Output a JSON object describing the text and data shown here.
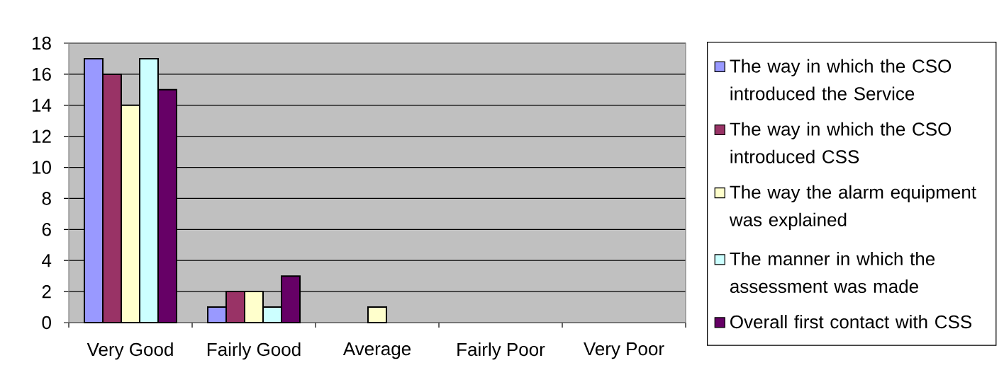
{
  "chart_data": {
    "type": "bar",
    "categories": [
      "Very Good",
      "Fairly Good",
      "Average",
      "Fairly Poor",
      "Very Poor"
    ],
    "series": [
      {
        "name": "The way in which the CSO introduced the Service",
        "color": "#9999ff",
        "values": [
          17,
          1,
          0,
          0,
          0
        ]
      },
      {
        "name": "The way in which the CSO introduced CSS",
        "color": "#993366",
        "values": [
          16,
          2,
          0,
          0,
          0
        ]
      },
      {
        "name": "The way the alarm equipment was explained",
        "color": "#ffffcc",
        "values": [
          14,
          2,
          1,
          0,
          0
        ]
      },
      {
        "name": "The manner in which the assessment was made",
        "color": "#ccffff",
        "values": [
          17,
          1,
          0,
          0,
          0
        ]
      },
      {
        "name": "Overall first contact with CSS",
        "color": "#660066",
        "values": [
          15,
          3,
          0,
          0,
          0
        ]
      }
    ],
    "ylim": [
      0,
      18
    ],
    "yticks": [
      0,
      2,
      4,
      6,
      8,
      10,
      12,
      14,
      16,
      18
    ],
    "grid": "y",
    "legend": "right"
  }
}
